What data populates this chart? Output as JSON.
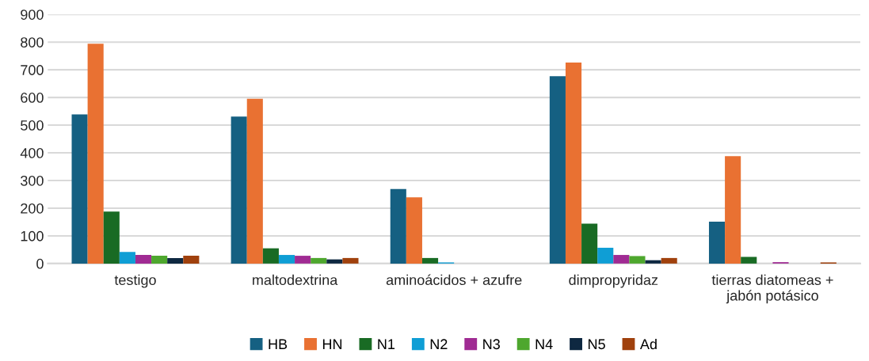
{
  "chart_data": {
    "type": "bar",
    "categories": [
      "testigo",
      "maltodextrina",
      "aminoácidos + azufre",
      "dimpropyridaz",
      "tierras diatomeas +\njabón potásico"
    ],
    "series": [
      {
        "name": "HB",
        "color": "#156082",
        "values": [
          539,
          531,
          269,
          677,
          151
        ]
      },
      {
        "name": "HN",
        "color": "#e97132",
        "values": [
          794,
          595,
          239,
          726,
          388
        ]
      },
      {
        "name": "N1",
        "color": "#196b24",
        "values": [
          188,
          55,
          20,
          144,
          24
        ]
      },
      {
        "name": "N2",
        "color": "#0f9ed5",
        "values": [
          42,
          31,
          4,
          57,
          0
        ]
      },
      {
        "name": "N3",
        "color": "#a02b93",
        "values": [
          31,
          28,
          0,
          31,
          5
        ]
      },
      {
        "name": "N4",
        "color": "#4ea72e",
        "values": [
          28,
          20,
          0,
          27,
          0
        ]
      },
      {
        "name": "N5",
        "color": "#0e2841",
        "values": [
          20,
          15,
          0,
          12,
          0
        ]
      },
      {
        "name": "Ad",
        "color": "#a0410d",
        "values": [
          28,
          20,
          0,
          20,
          4
        ]
      }
    ],
    "ylim": [
      0,
      900
    ],
    "yticks": [
      0,
      100,
      200,
      300,
      400,
      500,
      600,
      700,
      800,
      900
    ],
    "grid": "y",
    "legend": "bottom"
  }
}
